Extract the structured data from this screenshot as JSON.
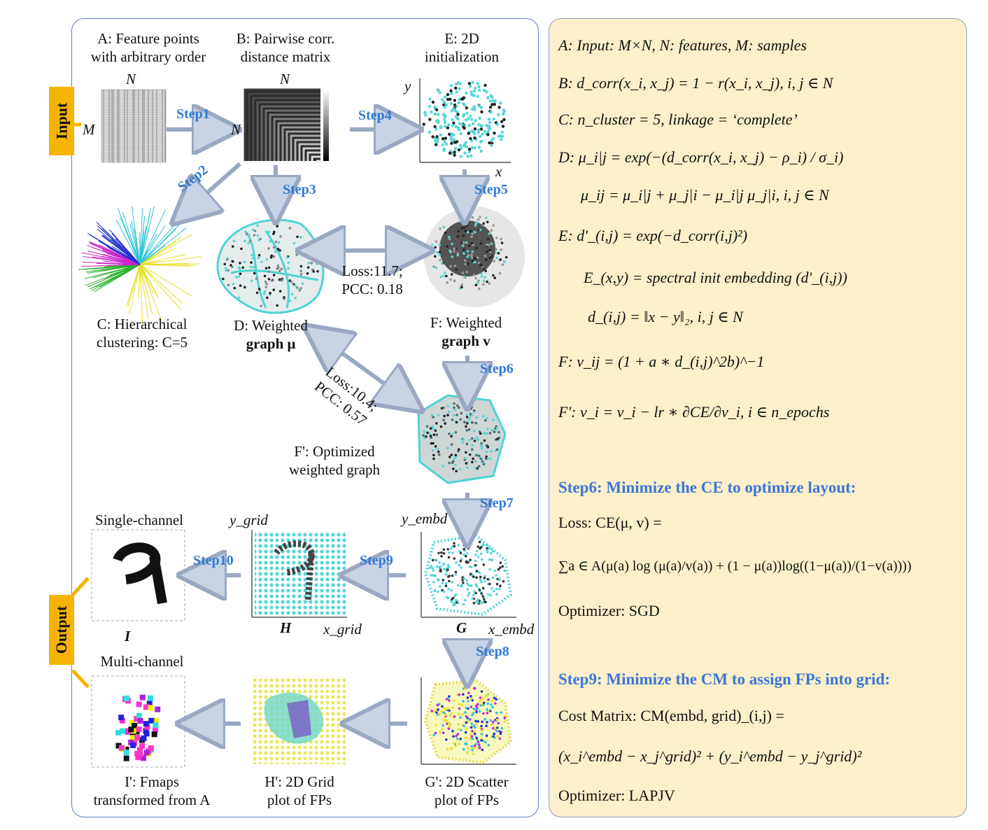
{
  "input_label": "Input",
  "output_label": "Output",
  "nodes": {
    "A": {
      "line1": "A: Feature points",
      "line2": "with arbitrary order",
      "axis_top": "N",
      "axis_left": "M"
    },
    "B": {
      "line1": "B: Pairwise corr.",
      "line2": "distance matrix",
      "axis_top": "N",
      "axis_left": "N"
    },
    "E": {
      "line1": "E: 2D",
      "line2": "initialization",
      "axis_y": "y",
      "axis_x": "x"
    },
    "C": {
      "line1": "C: Hierarchical",
      "line2": "clustering: C=5"
    },
    "D": {
      "line1": "D: Weighted",
      "line2": "graph μ"
    },
    "F": {
      "line1": "F: Weighted",
      "line2": "graph v"
    },
    "Fp": {
      "line1": "F': Optimized",
      "line2": "weighted graph"
    },
    "I": {
      "top": "Single-channel",
      "label": "I"
    },
    "H": {
      "label": "H",
      "axis_y": "y_grid",
      "axis_x": "x_grid"
    },
    "G": {
      "label": "G",
      "axis_y": "y_embd",
      "axis_x": "x_embd"
    },
    "Ip": {
      "top": "Multi-channel",
      "line1": "I': Fmaps",
      "line2": "transformed from A"
    },
    "Hp": {
      "line1": "H': 2D Grid",
      "line2": "plot of FPs"
    },
    "Gp": {
      "line1": "G': 2D Scatter",
      "line2": "plot of FPs"
    }
  },
  "steps": {
    "s1": "Step1",
    "s2": "Step2",
    "s3": "Step3",
    "s4": "Step4",
    "s5": "Step5",
    "s6": "Step6",
    "s7": "Step7",
    "s8": "Step8",
    "s9": "Step9",
    "s10": "Step10"
  },
  "loss1": {
    "line1": "Loss:11.7;",
    "line2": "PCC: 0.18"
  },
  "loss2": {
    "line1": "Loss:10.4;",
    "line2": "PCC: 0.57"
  },
  "formulas": {
    "A": "A: Input: M×N, N: features, M: samples",
    "B": "B: d_corr(x_i, x_j) = 1 − r(x_i, x_j), i, j ∈ N",
    "C": "C: n_cluster = 5, linkage = ‘complete’",
    "D1": "D: μ_i|j = exp(−(d_corr(x_i, x_j) − ρ_i) / σ_i)",
    "D2": "μ_ij = μ_i|j + μ_j|i − μ_i|j μ_j|i, i, j ∈ N",
    "E1": "E: d'_(i,j) = exp(−d_corr(i,j)²)",
    "E2": "E_(x,y) = spectral init embedding (d'_(i,j))",
    "E3": "d_(i,j) = ‖x − y‖₂, i, j ∈ N",
    "F": "F: v_ij = (1 + a ∗ d_(i,j)^2b)^−1",
    "Fp": "F': v_i = v_i − lr ∗ ∂CE/∂v_i, i ∈ n_epochs"
  },
  "step6_title": "Step6: Minimize the CE to optimize layout:",
  "step6_loss": "Loss: CE(μ, v) =",
  "step6_sum": "∑a ∈ A(μ(a) log (μ(a)/v(a)) + (1 − μ(a))log((1−μ(a))/(1−v(a))))",
  "step6_opt": "Optimizer: SGD",
  "step9_title": "Step9: Minimize the CM to assign FPs into grid:",
  "step9_cm": "Cost Matrix: CM(embd, grid)_(i,j) =",
  "step9_expr": "(x_i^embd − x_j^grid)² + (y_i^embd − y_j^grid)²",
  "step9_opt": "Optimizer: LAPJV",
  "colors": {
    "accent": "#f5b400",
    "step_blue": "#2e7ad6",
    "panel": "#fdefc9",
    "cyan": "#4fd3d3"
  }
}
